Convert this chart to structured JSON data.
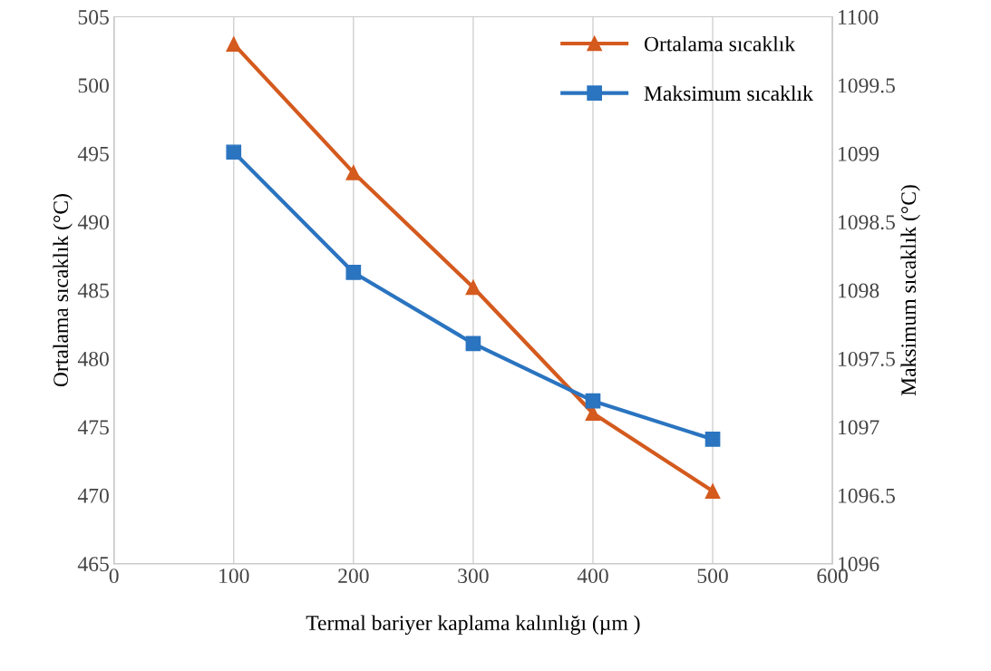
{
  "chart_data": {
    "type": "line",
    "x": [
      100,
      200,
      300,
      400,
      500
    ],
    "xlabel": "Termal bariyer kaplama kalınlığı (µm )",
    "ylabel": "Ortalama sıcaklık (°C)",
    "y2label": "Maksimum sıcaklık (°C)",
    "xlim": [
      0,
      600
    ],
    "xticks": [
      0,
      100,
      200,
      300,
      400,
      500,
      600
    ],
    "ylim": [
      465,
      505
    ],
    "yticks": [
      465,
      470,
      475,
      480,
      485,
      490,
      495,
      500,
      505
    ],
    "y2lim": [
      1096,
      1100
    ],
    "y2ticks": [
      1096,
      1096.5,
      1097,
      1097.5,
      1098,
      1098.5,
      1099,
      1099.5,
      1100
    ],
    "grid": "x",
    "legend": "top right",
    "series": [
      {
        "name": "Ortalama sıcaklık",
        "color": "#d45a1e",
        "marker": "triangle",
        "values": [
          503.0,
          493.6,
          485.2,
          476.0,
          470.3
        ]
      },
      {
        "name": "Maksimum sıcaklık",
        "color": "#2a74c0",
        "marker": "square",
        "axis": "y2",
        "values": [
          1099.01,
          1098.13,
          1097.61,
          1097.19,
          1096.91
        ]
      }
    ]
  }
}
